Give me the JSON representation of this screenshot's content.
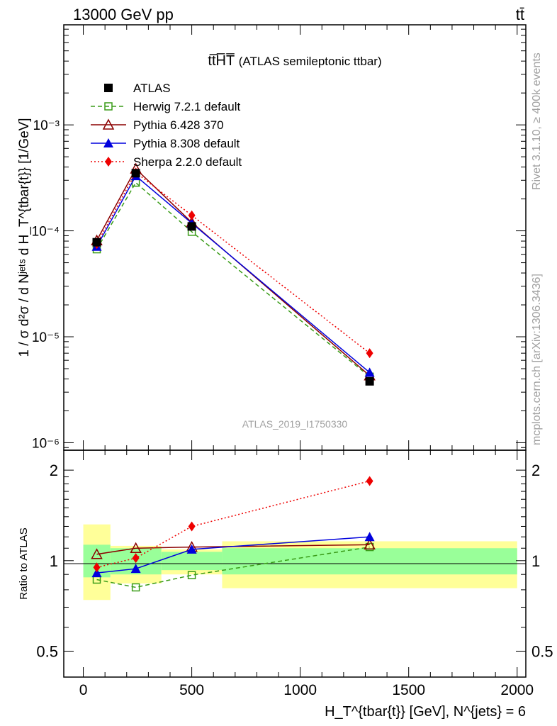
{
  "header": {
    "energy_label": "13000 GeV pp",
    "process_label": "tt̄",
    "plot_title_main": "tt̅H̅T̅",
    "plot_title_sub": "(ATLAS semileptonic ttbar)",
    "analysis_id": "ATLAS_2019_I1750330",
    "side_label_rivet": "Rivet 3.1.10, ≥ 400k events",
    "side_label_mcplots": "mcplots.cern.ch [arXiv:1306.3436]"
  },
  "axes": {
    "ylabel_main": "1 / σ d²σ / d Nʲᵉᵗˢ d H_T^{tbar{t}} [1/GeV]",
    "ylabel_ratio": "Ratio to ATLAS",
    "xlabel": "H_T^{tbar{t}} [GeV], N^{jets} = 6",
    "xlim": [
      -90,
      2040
    ],
    "ylim_main": [
      8.5e-07,
      0.0088
    ],
    "ylim_ratio": [
      0.41,
      2.33
    ],
    "x_ticks": [
      "0",
      "500",
      "1000",
      "1500",
      "2000"
    ],
    "x_tick_values": [
      0,
      500,
      1000,
      1500,
      2000
    ],
    "main_tick_labels": [
      "10⁻³",
      "10⁻⁴",
      "10⁻⁵",
      "10⁻⁶"
    ],
    "main_tick_values": [
      0.001,
      0.0001,
      1e-05,
      1e-06
    ],
    "ratio_tick_labels": [
      "2",
      "1",
      "0.5"
    ],
    "ratio_tick_values": [
      2,
      1,
      0.5
    ]
  },
  "chart_data": {
    "type": "line",
    "y_scale": "log",
    "ratio_y_scale": "log",
    "x_bins": [
      [
        0,
        125
      ],
      [
        125,
        360
      ],
      [
        360,
        640
      ],
      [
        640,
        2000
      ]
    ],
    "x": [
      62,
      242,
      500,
      1320
    ],
    "series": [
      {
        "name": "ATLAS",
        "color": "#000000",
        "marker": "square-filled",
        "line": "none",
        "values": [
          7.8e-05,
          0.00035,
          0.00011,
          3.8e-06
        ]
      },
      {
        "name": "Herwig 7.2.1 default",
        "color": "#3a9c18",
        "marker": "square-open",
        "line": "dashed",
        "values": [
          6.7e-05,
          0.000285,
          9.8e-05,
          4.2e-06
        ],
        "ratio": [
          0.865,
          0.815,
          0.895,
          1.11
        ]
      },
      {
        "name": "Pythia 6.428 370",
        "color": "#8b0000",
        "marker": "triangle-open",
        "line": "solid",
        "values": [
          8.1e-05,
          0.000385,
          0.00012,
          4.3e-06
        ],
        "ratio": [
          1.05,
          1.1,
          1.11,
          1.13
        ]
      },
      {
        "name": "Pythia 8.308 default",
        "color": "#0000dd",
        "marker": "triangle-filled",
        "line": "solid",
        "values": [
          7.1e-05,
          0.00033,
          0.000118,
          4.6e-06
        ],
        "ratio": [
          0.91,
          0.94,
          1.09,
          1.2
        ]
      },
      {
        "name": "Sherpa 2.2.0 default",
        "color": "#ee0000",
        "marker": "diamond-filled",
        "line": "dotted",
        "values": [
          7.5e-05,
          0.000355,
          0.00014,
          7e-06
        ],
        "ratio": [
          0.95,
          1.02,
          1.3,
          1.84
        ]
      }
    ],
    "ratio_bands": {
      "green": [
        [
          0.88,
          1.13
        ],
        [
          0.9,
          1.1
        ],
        [
          0.93,
          1.07
        ],
        [
          0.9,
          1.1
        ]
      ],
      "yellow": [
        [
          0.74,
          1.32
        ],
        [
          0.84,
          1.12
        ],
        [
          0.9,
          1.09
        ],
        [
          0.81,
          1.16
        ]
      ]
    },
    "legend_position": "top-left"
  }
}
